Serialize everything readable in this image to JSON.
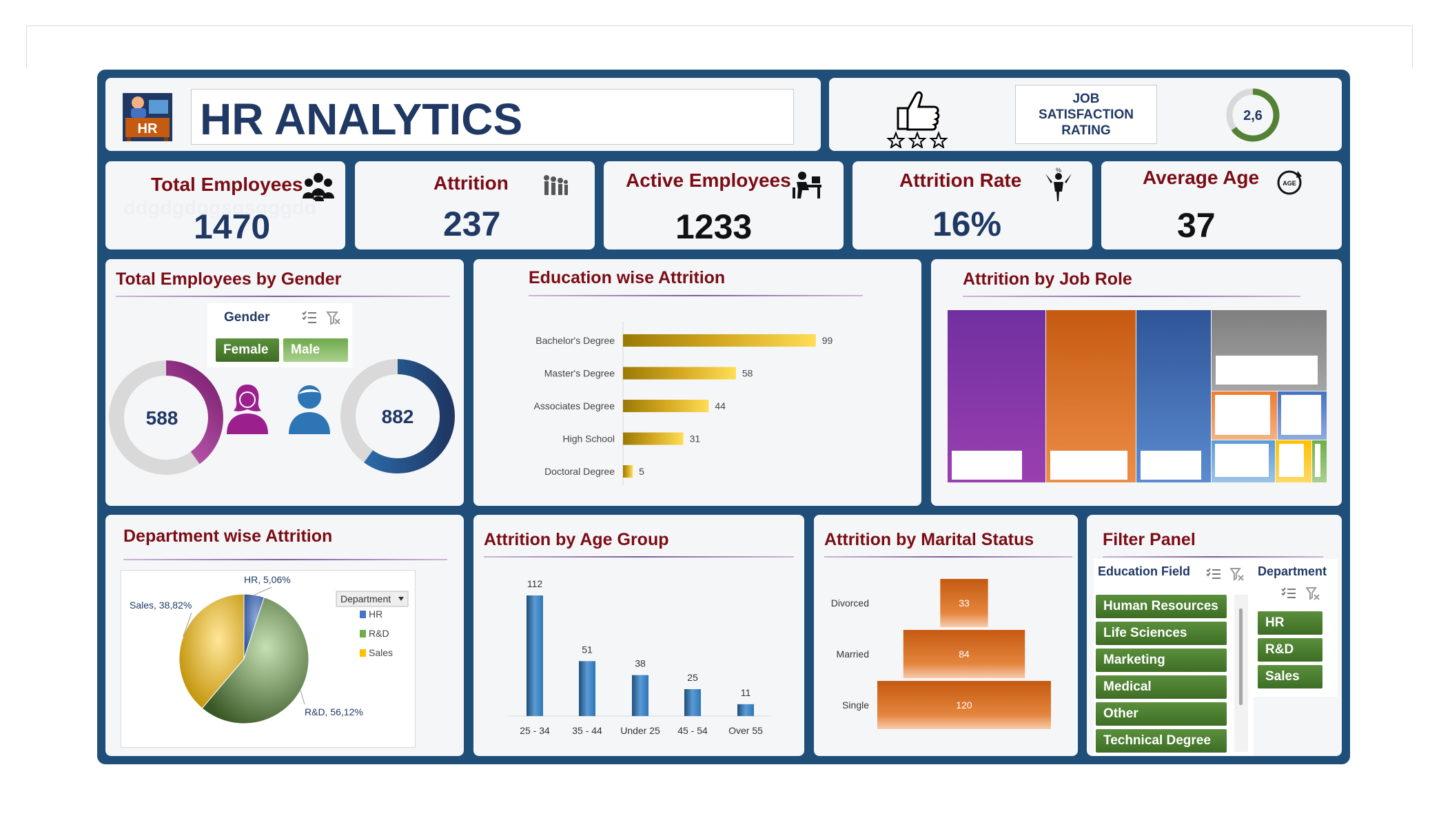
{
  "app": {
    "title": "HR ANALYTICS",
    "logo_text": "HR"
  },
  "satisfaction": {
    "label_line1": "JOB",
    "label_line2": "SATISFACTION",
    "label_line3": "RATING",
    "value": "2,6",
    "gauge_fraction": 0.65
  },
  "kpis": {
    "total_employees": {
      "label": "Total Employees",
      "value": "1470",
      "overlay_text": "ddgdgdggsgsgggdd"
    },
    "attrition": {
      "label": "Attrition",
      "value": "237"
    },
    "active_employees": {
      "label": "Active Employees",
      "value": "1233"
    },
    "attrition_rate": {
      "label": "Attrition Rate",
      "value": "16%"
    },
    "average_age": {
      "label": "Average Age",
      "value": "37",
      "icon_text": "AGE"
    }
  },
  "gender": {
    "title": "Total Employees by Gender",
    "slicer_title": "Gender",
    "buttons": [
      "Female",
      "Male"
    ],
    "female_value": "588",
    "male_value": "882",
    "female_fraction": 0.4,
    "male_fraction": 0.6
  },
  "education": {
    "title": "Education wise Attrition",
    "chart_data": {
      "type": "bar",
      "orientation": "horizontal",
      "categories": [
        "Bachelor's Degree",
        "Master's Degree",
        "Associates Degree",
        "High School",
        "Doctoral Degree"
      ],
      "values": [
        99,
        58,
        44,
        31,
        5
      ],
      "xlim": [
        0,
        110
      ]
    }
  },
  "jobrole": {
    "title": "Attrition by Job Role",
    "tiles": [
      {
        "color": "#7030a0",
        "color2": "#9a3fb0"
      },
      {
        "color": "#c55a11",
        "color2": "#ed8e48"
      },
      {
        "color": "#2f5597",
        "color2": "#5b8bd0"
      },
      {
        "color": "#7f7f7f",
        "color2": "#a5a5a5"
      },
      {
        "color": "#ed7d31",
        "color2": "#f4b183"
      },
      {
        "color": "#4472c4",
        "color2": "#8faadc"
      },
      {
        "color": "#5b9bd5",
        "color2": "#9dc3e6"
      },
      {
        "color": "#ffc000",
        "color2": "#ffd966"
      },
      {
        "color": "#70ad47",
        "color2": "#a9d18e"
      }
    ]
  },
  "department": {
    "title": "Department wise Attrition",
    "legend_title": "Department",
    "chart_data": {
      "type": "pie",
      "categories": [
        "HR",
        "R&D",
        "Sales"
      ],
      "values": [
        5.06,
        56.12,
        38.82
      ],
      "labels": [
        "HR, 5,06%",
        "R&D, 56,12%",
        "Sales, 38,82%"
      ],
      "legend": [
        "HR",
        "R&D",
        "Sales"
      ],
      "colors": [
        "#4472c4",
        "#70ad47",
        "#ffc000"
      ]
    }
  },
  "agegroup": {
    "title": "Attrition by Age Group",
    "chart_data": {
      "type": "bar",
      "categories": [
        "25 - 34",
        "35 - 44",
        "Under 25",
        "45 - 54",
        "Over 55"
      ],
      "values": [
        112,
        51,
        38,
        25,
        11
      ],
      "ylim": [
        0,
        120
      ]
    }
  },
  "marital": {
    "title": "Attrition by Marital Status",
    "chart_data": {
      "type": "bar",
      "orientation": "horizontal-centered",
      "categories": [
        "Divorced",
        "Married",
        "Single"
      ],
      "values": [
        33,
        84,
        120
      ],
      "xlim": [
        0,
        120
      ]
    }
  },
  "filter": {
    "title": "Filter Panel",
    "education_field_title": "Education Field",
    "education_fields": [
      "Human Resources",
      "Life Sciences",
      "Marketing",
      "Medical",
      "Other",
      "Technical Degree"
    ],
    "department_title": "Department",
    "departments": [
      "HR",
      "R&D",
      "Sales"
    ]
  }
}
